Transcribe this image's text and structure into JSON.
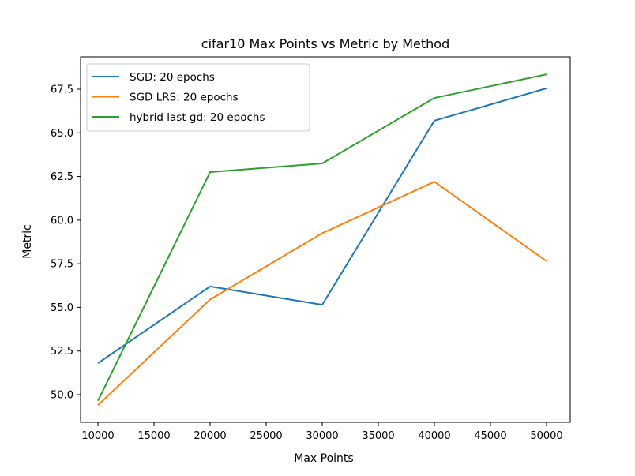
{
  "chart_data": {
    "type": "line",
    "title": "cifar10 Max Points vs Metric by Method",
    "xlabel": "Max Points",
    "ylabel": "Metric",
    "x": [
      10000,
      20000,
      30000,
      40000,
      50000
    ],
    "series": [
      {
        "name": "SGD: 20 epochs",
        "color": "#1f77b4",
        "values": [
          51.8,
          56.2,
          55.15,
          65.7,
          67.55
        ]
      },
      {
        "name": "SGD LRS: 20 epochs",
        "color": "#ff7f0e",
        "values": [
          49.4,
          55.45,
          59.25,
          62.2,
          57.65
        ]
      },
      {
        "name": "hybrid last gd: 20 epochs",
        "color": "#2ca02c",
        "values": [
          49.65,
          62.75,
          63.25,
          67.0,
          68.35
        ]
      }
    ],
    "xticks": [
      10000,
      15000,
      20000,
      25000,
      30000,
      35000,
      40000,
      45000,
      50000
    ],
    "xtick_labels": [
      "10000",
      "15000",
      "20000",
      "25000",
      "30000",
      "35000",
      "40000",
      "45000",
      "50000"
    ],
    "yticks": [
      50.0,
      52.5,
      55.0,
      57.5,
      60.0,
      62.5,
      65.0,
      67.5
    ],
    "ytick_labels": [
      "50.0",
      "52.5",
      "55.0",
      "57.5",
      "60.0",
      "62.5",
      "65.0",
      "67.5"
    ],
    "xlim": [
      8000,
      52000
    ],
    "ylim": [
      48.5,
      69.3
    ],
    "grid": false,
    "legend_position": "upper left"
  }
}
